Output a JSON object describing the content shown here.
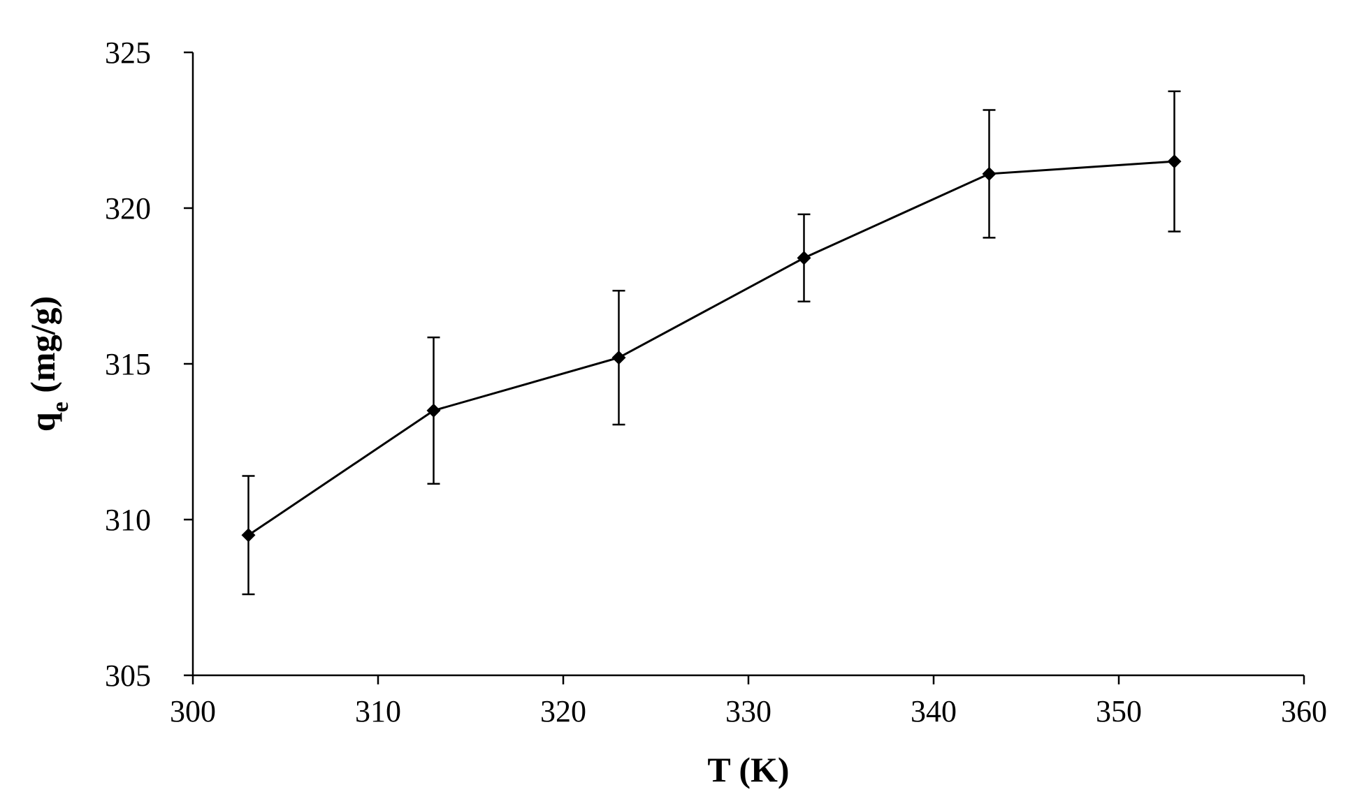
{
  "chart_data": {
    "type": "line",
    "title": "",
    "xlabel": "T (K)",
    "ylabel": {
      "main": "q",
      "subscript": "e",
      "unit": " (mg/g)"
    },
    "xlim": [
      300,
      360
    ],
    "ylim": [
      305,
      325
    ],
    "x_ticks": [
      "300",
      "310",
      "320",
      "330",
      "340",
      "350",
      "360"
    ],
    "y_ticks": [
      "305",
      "310",
      "315",
      "320",
      "325"
    ],
    "grid": false,
    "legend": "none",
    "marker": "diamond",
    "line_color": "#000000",
    "series": [
      {
        "x": [
          303,
          313,
          323,
          333,
          343,
          353
        ],
        "values": [
          309.5,
          313.5,
          315.2,
          318.4,
          321.1,
          321.5
        ],
        "error": [
          1.9,
          2.35,
          2.15,
          1.4,
          2.05,
          2.25
        ]
      }
    ]
  }
}
